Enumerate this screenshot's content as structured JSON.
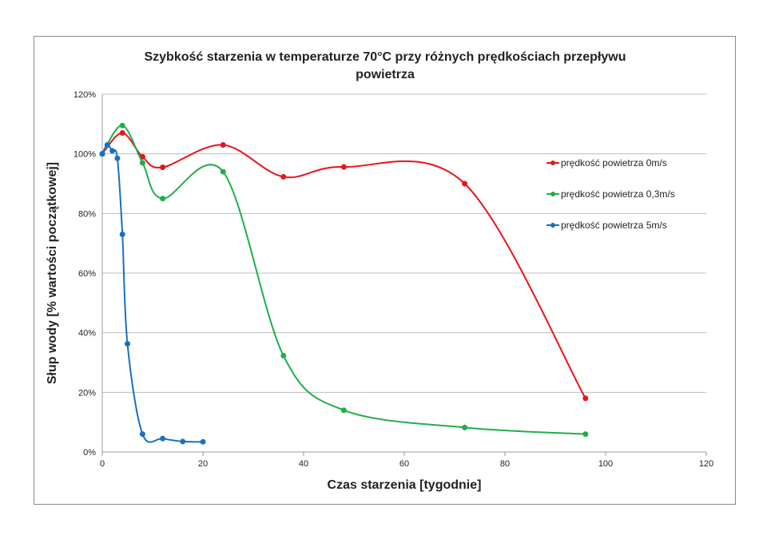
{
  "chart_data": {
    "type": "line",
    "title_lines": [
      "Szybkość starzenia w temperaturze 70°C przy różnych prędkościach przepływu",
      "powietrza"
    ],
    "xlabel": "Czas starzenia [tygodnie]",
    "ylabel": "Słup wody [% wartości początkowej]",
    "xlim": [
      0,
      120
    ],
    "ylim": [
      0,
      120
    ],
    "xticks": [
      0,
      20,
      40,
      60,
      80,
      100,
      120
    ],
    "xtick_labels": [
      "0",
      "20",
      "40",
      "60",
      "80",
      "100",
      "120"
    ],
    "yticks": [
      0,
      20,
      40,
      60,
      80,
      100,
      120
    ],
    "ytick_labels": [
      "0%",
      "20%",
      "40%",
      "60%",
      "80%",
      "100%",
      "120%"
    ],
    "grid": "horizontal",
    "legend_position": "right",
    "series": [
      {
        "name": "prędkość powietrza  0m/s",
        "color": "#e8141b",
        "x": [
          0,
          4,
          8,
          12,
          24,
          36,
          48,
          72,
          96
        ],
        "y": [
          100,
          107,
          99,
          95.5,
          103,
          92.3,
          95.6,
          90,
          18
        ]
      },
      {
        "name": "prędkość powietrza  0,3m/s",
        "color": "#1fae4b",
        "x": [
          0,
          4,
          8,
          12,
          24,
          36,
          48,
          72,
          96
        ],
        "y": [
          100,
          109.5,
          97,
          85,
          94,
          32.3,
          14,
          8.2,
          6
        ]
      },
      {
        "name": "prędkość powietrza  5m/s",
        "color": "#1a6fc0",
        "x": [
          0,
          1,
          2,
          3,
          4,
          5,
          8,
          12,
          16,
          20
        ],
        "y": [
          100,
          103,
          101,
          98.5,
          73,
          36.3,
          6,
          4.5,
          3.5,
          3.4
        ]
      }
    ]
  }
}
